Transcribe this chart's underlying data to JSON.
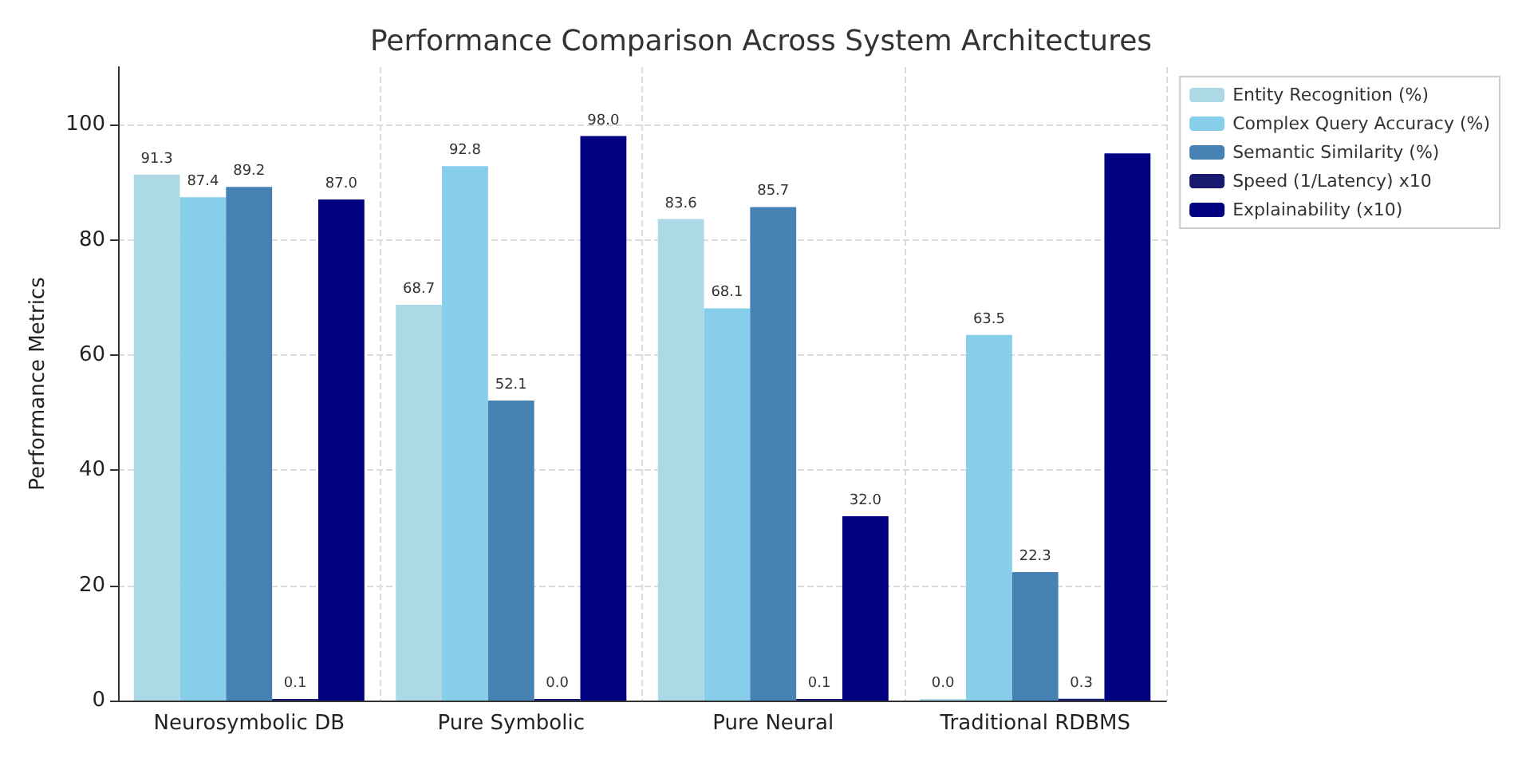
{
  "chart_data": {
    "type": "bar",
    "title": "Performance Comparison Across System Architectures",
    "ylabel": "Performance Metrics",
    "categories": [
      "Neurosymbolic DB",
      "Pure Symbolic",
      "Pure Neural",
      "Traditional RDBMS"
    ],
    "series": [
      {
        "name": "Entity Recognition (%)",
        "color": "#add8e6",
        "values": [
          91.3,
          68.7,
          83.6,
          0.0
        ],
        "value_labels": [
          "91.3",
          "68.7",
          "83.6",
          "0.0"
        ]
      },
      {
        "name": "Complex Query Accuracy (%)",
        "color": "#87ceeb",
        "values": [
          87.4,
          92.8,
          68.1,
          63.5
        ],
        "value_labels": [
          "87.4",
          "92.8",
          "68.1",
          "63.5"
        ]
      },
      {
        "name": "Semantic Similarity (%)",
        "color": "#4682b4",
        "values": [
          89.2,
          52.1,
          85.7,
          22.3
        ],
        "value_labels": [
          "89.2",
          "52.1",
          "85.7",
          "22.3"
        ]
      },
      {
        "name": "Speed (1/Latency) x10",
        "color": "#191970",
        "values": [
          0.1,
          0.0,
          0.1,
          0.3
        ],
        "value_labels": [
          "0.1",
          "0.0",
          "0.1",
          "0.3"
        ]
      },
      {
        "name": "Explainability (x10)",
        "color": "#000080",
        "values": [
          87.0,
          98.0,
          32.0,
          95
        ],
        "value_labels": [
          "87.0",
          "98.0",
          "32.0",
          null
        ]
      }
    ],
    "ylim": [
      0,
      110
    ],
    "yticks": [
      0,
      20,
      40,
      60,
      80,
      100
    ],
    "grid": true,
    "legend": "top right"
  }
}
